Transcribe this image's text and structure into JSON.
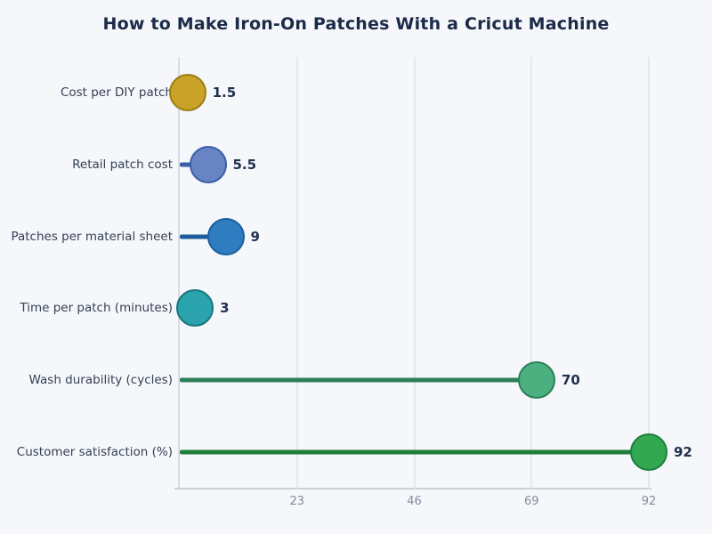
{
  "title": "How to Make Iron-On Patches With a Cricut Machine",
  "chart_data": {
    "type": "bar",
    "variant": "horizontal-lollipop",
    "title": "How to Make Iron-On Patches With a Cricut Machine",
    "xlabel": "",
    "ylabel": "",
    "categories": [
      "Cost per DIY patch",
      "Retail patch cost",
      "Patches per material sheet",
      "Time per patch (minutes)",
      "Wash durability (cycles)",
      "Customer satisfaction (%)"
    ],
    "values": [
      1.5,
      5.5,
      9,
      3,
      70,
      92
    ],
    "value_labels": [
      "1.5",
      "5.5",
      "9",
      "3",
      "70",
      "92"
    ],
    "point_colors": [
      {
        "fill": "#c9a227",
        "stroke": "#9d7e14"
      },
      {
        "fill": "#6884c2",
        "stroke": "#3a5fa8"
      },
      {
        "fill": "#2f7dc0",
        "stroke": "#1d5e9e"
      },
      {
        "fill": "#2aa3ad",
        "stroke": "#17767f"
      },
      {
        "fill": "#4caf7f",
        "stroke": "#2d8159"
      },
      {
        "fill": "#33a852",
        "stroke": "#1f7f3a"
      }
    ],
    "xticks": [
      23,
      46,
      69,
      92
    ],
    "xlim": [
      0,
      103
    ],
    "grid": true,
    "legend": "none",
    "background": "#f5f7fa"
  },
  "colors": {
    "background": "#f5f7fa",
    "gridline": "#e3e7ee",
    "y_axis_line": "#d8dce4",
    "x_axis_line": "#c9cfd8",
    "title_text": "#1b2a47",
    "category_text": "#343f55",
    "value_text": "#20304f",
    "tick_text": "#838c9d"
  }
}
